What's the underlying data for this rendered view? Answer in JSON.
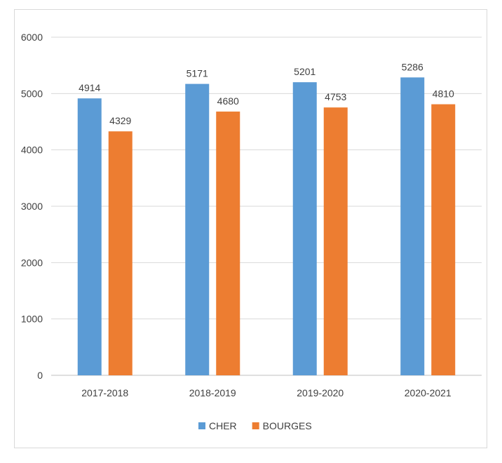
{
  "chart_data": {
    "type": "bar",
    "title": "",
    "xlabel": "",
    "ylabel": "",
    "categories": [
      "2017-2018",
      "2018-2019",
      "2019-2020",
      "2020-2021"
    ],
    "series": [
      {
        "name": "CHER",
        "values": [
          4914,
          5171,
          5201,
          5286
        ],
        "color": "#5b9bd5"
      },
      {
        "name": "BOURGES",
        "values": [
          4329,
          4680,
          4753,
          4810
        ],
        "color": "#ed7d31"
      }
    ],
    "ylim": [
      0,
      6000
    ],
    "yticks": [
      0,
      1000,
      2000,
      3000,
      4000,
      5000,
      6000
    ],
    "grid": true,
    "legend": "bottom",
    "data_labels": true
  }
}
